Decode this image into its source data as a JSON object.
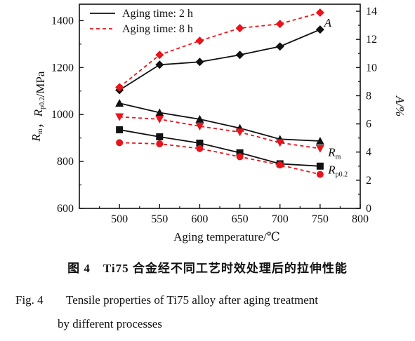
{
  "chart_data": {
    "type": "line",
    "x_label": "Aging temperature/℃",
    "y_left_label": "Rm，Rp0.2/MPa",
    "y_right_label": "A/%",
    "x_ticks": [
      500,
      550,
      600,
      650,
      700,
      750,
      800
    ],
    "y_left_ticks": [
      600,
      800,
      1000,
      1200,
      1400
    ],
    "y_right_ticks": [
      0,
      2,
      4,
      6,
      8,
      10,
      12,
      14
    ],
    "x_range": [
      450,
      800
    ],
    "y_left_range": [
      600,
      1470
    ],
    "y_right_range": [
      0,
      14.5
    ],
    "legend": [
      {
        "label": "Aging time: 2 h",
        "color": "#111111",
        "style": "solid"
      },
      {
        "label": "Aging time: 8 h",
        "color": "#e8141c",
        "style": "dashed"
      }
    ],
    "series": [
      {
        "label": "A",
        "aging": "2 h",
        "axis": "right",
        "marker": "diamond",
        "color": "#111111",
        "dash": false,
        "x": [
          500,
          550,
          600,
          650,
          700,
          750
        ],
        "y": [
          8.4,
          10.2,
          10.4,
          10.9,
          11.5,
          12.7
        ]
      },
      {
        "label": "A",
        "aging": "8 h",
        "axis": "right",
        "marker": "diamond",
        "color": "#e8141c",
        "dash": true,
        "x": [
          500,
          550,
          600,
          650,
          700,
          750
        ],
        "y": [
          8.6,
          10.9,
          11.9,
          12.8,
          13.1,
          13.9
        ]
      },
      {
        "label": "Rm",
        "aging": "2 h",
        "axis": "left",
        "marker": "triangle-up",
        "color": "#111111",
        "dash": false,
        "x": [
          500,
          550,
          600,
          650,
          700,
          750
        ],
        "y": [
          1048,
          1008,
          980,
          942,
          895,
          887
        ]
      },
      {
        "label": "Rm",
        "aging": "8 h",
        "axis": "left",
        "marker": "triangle-down",
        "color": "#e8141c",
        "dash": true,
        "x": [
          500,
          550,
          600,
          650,
          700,
          750
        ],
        "y": [
          990,
          980,
          950,
          925,
          880,
          855
        ]
      },
      {
        "label": "Rp0.2",
        "aging": "2 h",
        "axis": "left",
        "marker": "square",
        "color": "#111111",
        "dash": false,
        "x": [
          500,
          550,
          600,
          650,
          700,
          750
        ],
        "y": [
          935,
          905,
          878,
          837,
          790,
          780
        ]
      },
      {
        "label": "Rp0.2",
        "aging": "8 h",
        "axis": "left",
        "marker": "circle",
        "color": "#e8141c",
        "dash": true,
        "x": [
          500,
          550,
          600,
          650,
          700,
          750
        ],
        "y": [
          880,
          875,
          855,
          820,
          785,
          745
        ]
      }
    ],
    "annotations": [
      "A",
      "Rm",
      "Rp0.2"
    ]
  },
  "caption": {
    "zh": "图 4　Ti75 合金经不同工艺时效处理后的拉伸性能",
    "en_lead": "Fig. 4",
    "en_line1": "Tensile properties of Ti75 alloy after aging treatment",
    "en_line2": "by different processes"
  }
}
